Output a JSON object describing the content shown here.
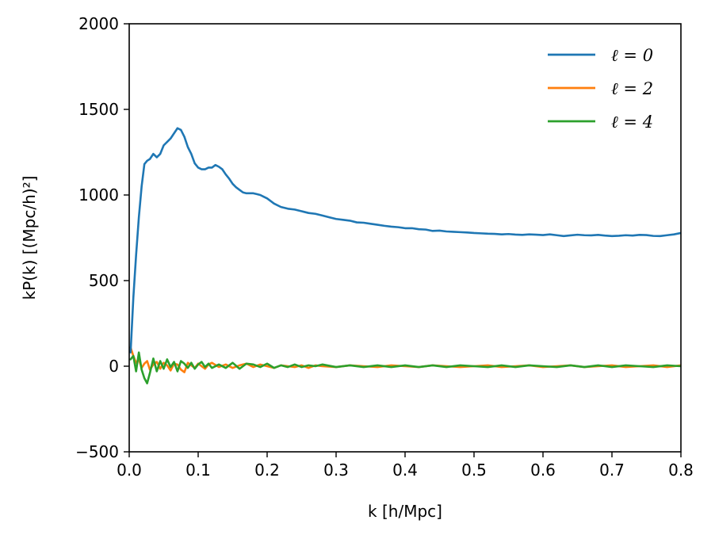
{
  "chart_data": {
    "type": "line",
    "xlabel": "k [h/Mpc]",
    "ylabel": "kP(k) [(Mpc/h)²]",
    "xlim": [
      0.0,
      0.8
    ],
    "ylim": [
      -500,
      2000
    ],
    "xticks": [
      "0.0",
      "0.1",
      "0.2",
      "0.3",
      "0.4",
      "0.5",
      "0.6",
      "0.7",
      "0.8"
    ],
    "yticks": [
      "−500",
      "0",
      "500",
      "1000",
      "1500",
      "2000"
    ],
    "grid": false,
    "legend_position": "top-right",
    "series": [
      {
        "name": "ℓ = 0",
        "color": "#1f77b4",
        "x": [
          0.002,
          0.006,
          0.01,
          0.014,
          0.018,
          0.022,
          0.026,
          0.03,
          0.035,
          0.04,
          0.045,
          0.05,
          0.055,
          0.06,
          0.065,
          0.07,
          0.075,
          0.08,
          0.085,
          0.09,
          0.095,
          0.1,
          0.105,
          0.11,
          0.115,
          0.12,
          0.125,
          0.13,
          0.135,
          0.14,
          0.145,
          0.15,
          0.155,
          0.16,
          0.165,
          0.17,
          0.175,
          0.18,
          0.185,
          0.19,
          0.195,
          0.2,
          0.21,
          0.22,
          0.23,
          0.24,
          0.25,
          0.26,
          0.27,
          0.28,
          0.29,
          0.3,
          0.31,
          0.32,
          0.33,
          0.34,
          0.35,
          0.36,
          0.37,
          0.38,
          0.39,
          0.4,
          0.41,
          0.42,
          0.43,
          0.44,
          0.45,
          0.46,
          0.47,
          0.48,
          0.49,
          0.5,
          0.51,
          0.52,
          0.53,
          0.54,
          0.55,
          0.56,
          0.57,
          0.58,
          0.59,
          0.6,
          0.61,
          0.62,
          0.63,
          0.64,
          0.65,
          0.66,
          0.67,
          0.68,
          0.69,
          0.7,
          0.71,
          0.72,
          0.73,
          0.74,
          0.75,
          0.76,
          0.77,
          0.78,
          0.79,
          0.8
        ],
        "y": [
          80,
          400,
          650,
          870,
          1050,
          1180,
          1200,
          1210,
          1240,
          1220,
          1240,
          1290,
          1310,
          1330,
          1360,
          1390,
          1380,
          1340,
          1280,
          1240,
          1185,
          1160,
          1150,
          1150,
          1160,
          1160,
          1175,
          1165,
          1150,
          1120,
          1095,
          1065,
          1045,
          1030,
          1015,
          1010,
          1010,
          1010,
          1005,
          1000,
          990,
          980,
          950,
          930,
          920,
          915,
          905,
          895,
          890,
          880,
          870,
          860,
          855,
          850,
          840,
          838,
          832,
          826,
          820,
          815,
          812,
          806,
          806,
          800,
          798,
          790,
          792,
          787,
          785,
          783,
          781,
          778,
          776,
          774,
          773,
          770,
          772,
          769,
          767,
          770,
          768,
          766,
          770,
          765,
          760,
          764,
          768,
          765,
          764,
          767,
          763,
          760,
          762,
          765,
          763,
          767,
          766,
          761,
          760,
          765,
          770,
          778
        ]
      },
      {
        "name": "ℓ = 2",
        "color": "#ff7f0e",
        "x": [
          0.002,
          0.006,
          0.01,
          0.014,
          0.018,
          0.022,
          0.026,
          0.03,
          0.035,
          0.04,
          0.045,
          0.05,
          0.055,
          0.06,
          0.065,
          0.07,
          0.075,
          0.08,
          0.085,
          0.09,
          0.095,
          0.1,
          0.105,
          0.11,
          0.115,
          0.12,
          0.13,
          0.14,
          0.15,
          0.16,
          0.17,
          0.18,
          0.19,
          0.2,
          0.21,
          0.22,
          0.23,
          0.24,
          0.25,
          0.26,
          0.27,
          0.28,
          0.3,
          0.32,
          0.34,
          0.36,
          0.38,
          0.4,
          0.42,
          0.44,
          0.46,
          0.48,
          0.5,
          0.52,
          0.54,
          0.56,
          0.58,
          0.6,
          0.62,
          0.64,
          0.66,
          0.68,
          0.7,
          0.72,
          0.74,
          0.76,
          0.78,
          0.8
        ],
        "y": [
          110,
          60,
          20,
          40,
          -10,
          15,
          30,
          -20,
          10,
          25,
          -15,
          20,
          5,
          -25,
          15,
          10,
          -20,
          -35,
          20,
          5,
          -10,
          15,
          0,
          -15,
          10,
          20,
          -5,
          10,
          -10,
          5,
          15,
          -5,
          10,
          0,
          -10,
          5,
          0,
          -5,
          5,
          -10,
          5,
          0,
          -5,
          5,
          0,
          -5,
          5,
          0,
          -5,
          5,
          0,
          -5,
          0,
          5,
          -5,
          0,
          5,
          -5,
          0,
          5,
          -5,
          0,
          5,
          -5,
          0,
          5,
          -5,
          5
        ]
      },
      {
        "name": "ℓ = 4",
        "color": "#2ca02c",
        "x": [
          0.002,
          0.006,
          0.01,
          0.014,
          0.018,
          0.022,
          0.026,
          0.03,
          0.035,
          0.04,
          0.045,
          0.05,
          0.055,
          0.06,
          0.065,
          0.07,
          0.075,
          0.08,
          0.085,
          0.09,
          0.095,
          0.1,
          0.105,
          0.11,
          0.115,
          0.12,
          0.13,
          0.14,
          0.15,
          0.16,
          0.17,
          0.18,
          0.19,
          0.2,
          0.21,
          0.22,
          0.23,
          0.24,
          0.25,
          0.26,
          0.27,
          0.28,
          0.3,
          0.32,
          0.34,
          0.36,
          0.38,
          0.4,
          0.42,
          0.44,
          0.46,
          0.48,
          0.5,
          0.52,
          0.54,
          0.56,
          0.58,
          0.6,
          0.62,
          0.64,
          0.66,
          0.68,
          0.7,
          0.72,
          0.74,
          0.76,
          0.78,
          0.8
        ],
        "y": [
          40,
          60,
          -30,
          80,
          -20,
          -70,
          -100,
          -40,
          45,
          -30,
          30,
          -15,
          40,
          -5,
          25,
          -30,
          30,
          15,
          -10,
          20,
          -15,
          10,
          25,
          -5,
          15,
          -10,
          10,
          -10,
          20,
          -15,
          15,
          10,
          -5,
          15,
          -10,
          5,
          -5,
          10,
          -5,
          5,
          0,
          10,
          -5,
          5,
          -5,
          5,
          -5,
          5,
          -5,
          5,
          -5,
          5,
          0,
          -5,
          5,
          -5,
          5,
          0,
          -5,
          5,
          -5,
          5,
          -5,
          5,
          0,
          -5,
          5,
          0
        ]
      }
    ]
  }
}
